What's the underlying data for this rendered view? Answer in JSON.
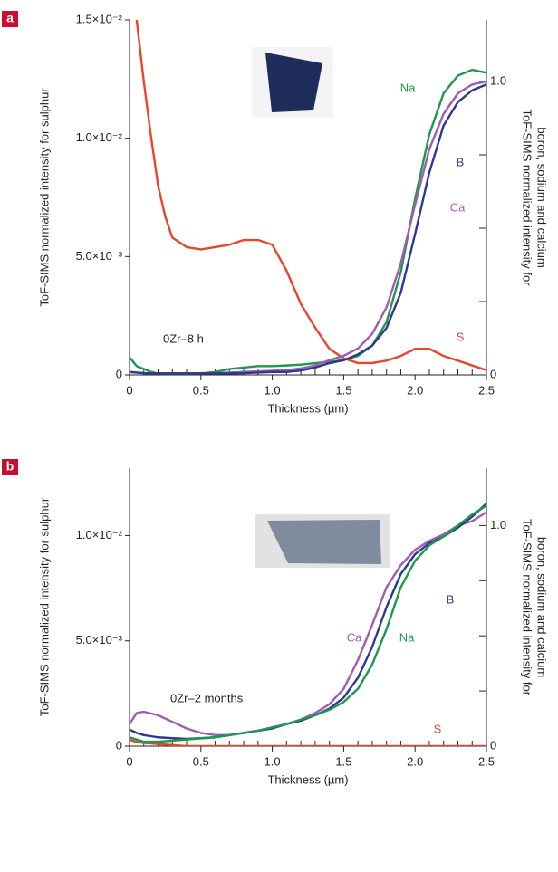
{
  "chart_data": [
    {
      "type": "line",
      "panel_label": "a",
      "annotation": "0Zr–8 h",
      "xlabel": "Thickness (µm)",
      "ylabel": "ToF-SIMS normalized intensity for sulphur",
      "y2label": [
        "ToF-SIMS normalized intensity for",
        "boron, sodium and calcium"
      ],
      "x": [
        0,
        0.05,
        0.1,
        0.15,
        0.2,
        0.25,
        0.3,
        0.4,
        0.5,
        0.6,
        0.7,
        0.8,
        0.9,
        1.0,
        1.1,
        1.2,
        1.3,
        1.4,
        1.5,
        1.6,
        1.7,
        1.8,
        1.9,
        2.0,
        2.1,
        2.2,
        2.3,
        2.4,
        2.5
      ],
      "xlim": [
        0,
        2.5
      ],
      "xticks": [
        0,
        0.5,
        {
          "value": 1,
          "label": "1.0"
        },
        1.5,
        {
          "value": 2,
          "label": "2.0"
        },
        2.5
      ],
      "xminorticks": [
        0.1,
        0.2,
        0.3,
        0.4,
        0.6,
        0.7,
        0.8,
        0.9,
        1.1,
        1.2,
        1.3,
        1.4,
        1.6,
        1.7,
        1.8,
        1.9,
        2.1,
        2.2,
        2.3,
        2.4
      ],
      "ylim": [
        0,
        0.015
      ],
      "yticks": [
        0,
        {
          "value": 0.005,
          "label": "5.0×10⁻³"
        },
        {
          "value": 0.01,
          "label": "1.0×10⁻²"
        },
        {
          "value": 0.015,
          "label": "1.5×10⁻²"
        }
      ],
      "y2lim": [
        0,
        1.21
      ],
      "y2ticks": [
        0,
        {
          "value": 1,
          "label": "1.0"
        }
      ],
      "y2minorticks": [
        0.25,
        0.5,
        0.75
      ],
      "series": [
        {
          "name": "S",
          "color": "#e8452c",
          "values": [
            0.018,
            0.015,
            0.0124,
            0.0101,
            0.008,
            0.0067,
            0.0058,
            0.0054,
            0.0053,
            0.0054,
            0.0055,
            0.0057,
            0.0057,
            0.0055,
            0.0044,
            0.003,
            0.002,
            0.0011,
            0.0007,
            0.0005,
            0.0005,
            0.0006,
            0.0008,
            0.0011,
            0.0011,
            0.0008,
            0.0006,
            0.0004,
            0.0002
          ]
        },
        {
          "name": "Na",
          "color": "#1a9a4a",
          "axis": "y2",
          "values": [
            0.06,
            0.03,
            0.02,
            0.01,
            0.005,
            0.005,
            0.005,
            0.005,
            0.005,
            0.01,
            0.02,
            0.025,
            0.03,
            0.03,
            0.032,
            0.035,
            0.04,
            0.045,
            0.05,
            0.065,
            0.1,
            0.18,
            0.35,
            0.6,
            0.82,
            0.96,
            1.02,
            1.04,
            1.03
          ]
        },
        {
          "name": "Ca",
          "color": "#a05cb4",
          "axis": "y2",
          "values": [
            0.01,
            0.008,
            0.006,
            0.005,
            0.005,
            0.005,
            0.005,
            0.005,
            0.005,
            0.006,
            0.008,
            0.01,
            0.012,
            0.014,
            0.016,
            0.022,
            0.032,
            0.05,
            0.065,
            0.09,
            0.14,
            0.23,
            0.38,
            0.58,
            0.77,
            0.89,
            0.96,
            0.99,
            1.0
          ]
        },
        {
          "name": "B",
          "color": "#2b3990",
          "axis": "y2",
          "values": [
            0.01,
            0.008,
            0.006,
            0.005,
            0.005,
            0.005,
            0.005,
            0.005,
            0.005,
            0.005,
            0.005,
            0.006,
            0.008,
            0.01,
            0.01,
            0.015,
            0.025,
            0.04,
            0.05,
            0.07,
            0.1,
            0.16,
            0.28,
            0.48,
            0.69,
            0.85,
            0.93,
            0.97,
            0.99
          ]
        }
      ]
    },
    {
      "type": "line",
      "panel_label": "b",
      "annotation": "0Zr–2 months",
      "xlabel": "Thickness (µm)",
      "ylabel": "ToF-SIMS normalized intensity for sulphur",
      "y2label": [
        "ToF-SIMS normalized intensity for",
        "boron, sodium and calcium"
      ],
      "x": [
        0,
        0.05,
        0.1,
        0.2,
        0.3,
        0.4,
        0.5,
        0.6,
        0.7,
        0.8,
        0.9,
        1.0,
        1.1,
        1.2,
        1.3,
        1.4,
        1.5,
        1.6,
        1.7,
        1.8,
        1.9,
        2.0,
        2.1,
        2.2,
        2.3,
        2.4,
        2.5
      ],
      "xlim": [
        0,
        2.5
      ],
      "xticks": [
        0,
        0.5,
        {
          "value": 1,
          "label": "1.0"
        },
        1.5,
        {
          "value": 2,
          "label": "2.0"
        },
        2.5
      ],
      "xminorticks": [
        0.1,
        0.2,
        0.3,
        0.4,
        0.6,
        0.7,
        0.8,
        0.9,
        1.1,
        1.2,
        1.3,
        1.4,
        1.6,
        1.7,
        1.8,
        1.9,
        2.1,
        2.2,
        2.3,
        2.4
      ],
      "ylim": [
        0,
        0.0132
      ],
      "yticks": [
        0,
        {
          "value": 0.005,
          "label": "5.0×10⁻³"
        },
        {
          "value": 0.01,
          "label": "1.0×10⁻²"
        }
      ],
      "y2lim": [
        0,
        1.26
      ],
      "y2ticks": [
        0,
        {
          "value": 1,
          "label": "1.0"
        }
      ],
      "y2minorticks": [
        0.25,
        0.5,
        0.75
      ],
      "series": [
        {
          "name": "S",
          "color": "#e8452c",
          "values": [
            0.0003,
            0.0002,
            0.00015,
            0.0001,
            5e-05,
            0,
            0,
            0,
            0,
            0,
            0,
            0,
            0,
            0,
            0,
            0,
            0,
            0,
            0,
            0,
            0,
            0,
            0,
            0,
            0,
            0,
            0
          ]
        },
        {
          "name": "Ca",
          "color": "#a05cb4",
          "axis": "y2",
          "values": [
            0.1,
            0.15,
            0.156,
            0.14,
            0.11,
            0.08,
            0.06,
            0.05,
            0.05,
            0.06,
            0.07,
            0.085,
            0.1,
            0.12,
            0.15,
            0.19,
            0.26,
            0.39,
            0.55,
            0.72,
            0.82,
            0.89,
            0.93,
            0.96,
            1.0,
            1.02,
            1.06
          ]
        },
        {
          "name": "B",
          "color": "#2b3990",
          "axis": "y2",
          "values": [
            0.075,
            0.06,
            0.05,
            0.04,
            0.036,
            0.033,
            0.036,
            0.04,
            0.05,
            0.06,
            0.07,
            0.08,
            0.1,
            0.115,
            0.14,
            0.17,
            0.22,
            0.31,
            0.45,
            0.63,
            0.78,
            0.87,
            0.92,
            0.95,
            0.99,
            1.04,
            1.1
          ]
        },
        {
          "name": "Na",
          "color": "#1a9a4a",
          "axis": "y2",
          "values": [
            0.04,
            0.03,
            0.02,
            0.02,
            0.025,
            0.03,
            0.035,
            0.04,
            0.05,
            0.06,
            0.07,
            0.085,
            0.1,
            0.12,
            0.14,
            0.165,
            0.2,
            0.26,
            0.37,
            0.53,
            0.72,
            0.84,
            0.91,
            0.95,
            1.0,
            1.05,
            1.09
          ]
        }
      ]
    }
  ]
}
